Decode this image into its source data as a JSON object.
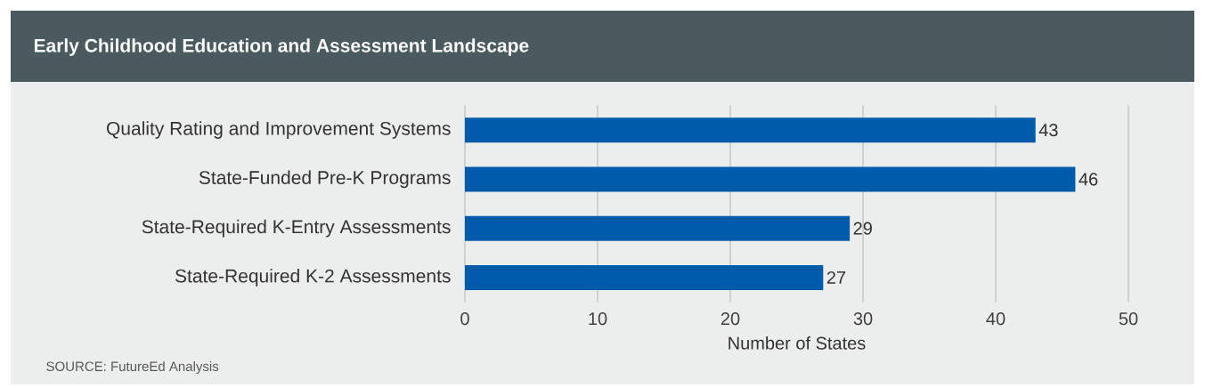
{
  "chart_data": {
    "type": "bar",
    "orientation": "horizontal",
    "title": "Early Childhood Education and Assessment Landscape",
    "categories": [
      "Quality Rating and Improvement Systems",
      "State-Funded Pre-K Programs",
      "State-Required K-Entry Assessments",
      "State-Required K-2 Assessments"
    ],
    "values": [
      43,
      46,
      29,
      27
    ],
    "color": "#005baa",
    "xlim": [
      0,
      50
    ],
    "xticks": [
      0,
      10,
      20,
      30,
      40,
      50
    ],
    "xlabel": "Number of States",
    "grid": "x",
    "data_labels": true,
    "annotations": [
      "SOURCE: FutureEd Analysis"
    ]
  }
}
